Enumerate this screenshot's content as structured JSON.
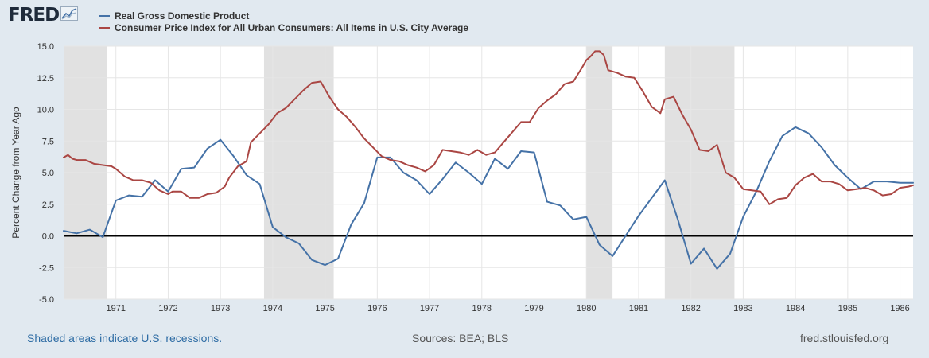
{
  "header": {
    "logo_text": "FRED",
    "logo_icon": "line-chart-icon"
  },
  "colors": {
    "gdp": "#4572a7",
    "cpi": "#aa4643",
    "recession": "#e1e1e1",
    "background": "#e1e9f0",
    "plot": "#ffffff"
  },
  "chart_data": {
    "type": "line",
    "title": "",
    "ylabel": "Percent Change from Year Ago",
    "xlabel": "",
    "ylim": [
      -5.0,
      15.0
    ],
    "xlim": [
      "1970-01-01",
      "1986-04-01"
    ],
    "y_ticks": [
      "15.0",
      "12.5",
      "10.0",
      "7.5",
      "5.0",
      "2.5",
      "0.0",
      "-2.5",
      "-5.0"
    ],
    "x_ticks": [
      "1971",
      "1972",
      "1973",
      "1974",
      "1975",
      "1976",
      "1977",
      "1978",
      "1979",
      "1980",
      "1981",
      "1982",
      "1983",
      "1984",
      "1985",
      "1986"
    ],
    "grid": true,
    "legend": "top-left",
    "recessions": [
      [
        "1970-01-01",
        "1970-11-01"
      ],
      [
        "1973-11-01",
        "1975-03-01"
      ],
      [
        "1980-01-01",
        "1980-07-01"
      ],
      [
        "1981-07-01",
        "1982-11-01"
      ]
    ],
    "series": [
      {
        "name": "Real Gross Domestic Product",
        "frequency": "quarterly",
        "x": [
          "1970-01-01",
          "1970-04-01",
          "1970-07-01",
          "1970-10-01",
          "1971-01-01",
          "1971-04-01",
          "1971-07-01",
          "1971-10-01",
          "1972-01-01",
          "1972-04-01",
          "1972-07-01",
          "1972-10-01",
          "1973-01-01",
          "1973-04-01",
          "1973-07-01",
          "1973-10-01",
          "1974-01-01",
          "1974-04-01",
          "1974-07-01",
          "1974-10-01",
          "1975-01-01",
          "1975-04-01",
          "1975-07-01",
          "1975-10-01",
          "1976-01-01",
          "1976-04-01",
          "1976-07-01",
          "1976-10-01",
          "1977-01-01",
          "1977-04-01",
          "1977-07-01",
          "1977-10-01",
          "1978-01-01",
          "1978-04-01",
          "1978-07-01",
          "1978-10-01",
          "1979-01-01",
          "1979-04-01",
          "1979-07-01",
          "1979-10-01",
          "1980-01-01",
          "1980-04-01",
          "1980-07-01",
          "1980-10-01",
          "1981-01-01",
          "1981-04-01",
          "1981-07-01",
          "1981-10-01",
          "1982-01-01",
          "1982-04-01",
          "1982-07-01",
          "1982-10-01",
          "1983-01-01",
          "1983-04-01",
          "1983-07-01",
          "1983-10-01",
          "1984-01-01",
          "1984-04-01",
          "1984-07-01",
          "1984-10-01",
          "1985-01-01",
          "1985-04-01",
          "1985-07-01",
          "1985-10-01",
          "1986-01-01",
          "1986-04-01"
        ],
        "values": [
          0.4,
          0.2,
          0.5,
          -0.1,
          2.8,
          3.2,
          3.1,
          4.4,
          3.5,
          5.3,
          5.4,
          6.9,
          7.6,
          6.3,
          4.8,
          4.1,
          0.7,
          -0.1,
          -0.6,
          -1.9,
          -2.3,
          -1.8,
          0.9,
          2.6,
          6.2,
          6.2,
          5.0,
          4.4,
          3.3,
          4.5,
          5.8,
          5.0,
          4.1,
          6.1,
          5.3,
          6.7,
          6.6,
          2.7,
          2.4,
          1.3,
          1.5,
          -0.7,
          -1.6,
          0.0,
          1.6,
          3.0,
          4.4,
          1.3,
          -2.2,
          -1.0,
          -2.6,
          -1.4,
          1.5,
          3.5,
          5.9,
          7.9,
          8.6,
          8.1,
          7.0,
          5.6,
          4.6,
          3.7,
          4.3,
          4.3,
          4.2,
          4.2
        ]
      },
      {
        "name": "Consumer Price Index for All Urban Consumers: All Items in U.S. City Average",
        "frequency": "monthly-approx",
        "x": [
          "1970-01-01",
          "1970-02-01",
          "1970-03-01",
          "1970-04-01",
          "1970-06-01",
          "1970-08-01",
          "1970-10-01",
          "1970-12-01",
          "1971-01-01",
          "1971-03-01",
          "1971-05-01",
          "1971-07-01",
          "1971-09-01",
          "1971-11-01",
          "1972-01-01",
          "1972-02-01",
          "1972-04-01",
          "1972-06-01",
          "1972-08-01",
          "1972-10-01",
          "1972-12-01",
          "1973-02-01",
          "1973-03-01",
          "1973-05-01",
          "1973-07-01",
          "1973-08-01",
          "1973-10-01",
          "1973-12-01",
          "1974-02-01",
          "1974-04-01",
          "1974-06-01",
          "1974-08-01",
          "1974-10-01",
          "1974-12-01",
          "1975-02-01",
          "1975-04-01",
          "1975-06-01",
          "1975-08-01",
          "1975-10-01",
          "1975-12-01",
          "1976-02-01",
          "1976-04-01",
          "1976-06-01",
          "1976-08-01",
          "1976-10-01",
          "1976-12-01",
          "1977-02-01",
          "1977-04-01",
          "1977-06-01",
          "1977-08-01",
          "1977-10-01",
          "1977-12-01",
          "1978-02-01",
          "1978-04-01",
          "1978-06-01",
          "1978-08-01",
          "1978-10-01",
          "1978-12-01",
          "1979-02-01",
          "1979-04-01",
          "1979-06-01",
          "1979-08-01",
          "1979-10-01",
          "1979-12-01",
          "1980-01-01",
          "1980-02-01",
          "1980-03-01",
          "1980-04-01",
          "1980-05-01",
          "1980-06-01",
          "1980-08-01",
          "1980-10-01",
          "1980-12-01",
          "1981-02-01",
          "1981-04-01",
          "1981-06-01",
          "1981-07-01",
          "1981-09-01",
          "1981-11-01",
          "1982-01-01",
          "1982-03-01",
          "1982-05-01",
          "1982-07-01",
          "1982-09-01",
          "1982-11-01",
          "1983-01-01",
          "1983-03-01",
          "1983-05-01",
          "1983-07-01",
          "1983-09-01",
          "1983-11-01",
          "1984-01-01",
          "1984-03-01",
          "1984-05-01",
          "1984-07-01",
          "1984-09-01",
          "1984-11-01",
          "1985-01-01",
          "1985-03-01",
          "1985-05-01",
          "1985-07-01",
          "1985-09-01",
          "1985-11-01",
          "1986-01-01",
          "1986-03-01",
          "1986-04-01"
        ],
        "values": [
          6.2,
          6.4,
          6.1,
          6.0,
          6.0,
          5.7,
          5.6,
          5.5,
          5.3,
          4.7,
          4.4,
          4.4,
          4.2,
          3.6,
          3.3,
          3.5,
          3.5,
          3.0,
          3.0,
          3.3,
          3.4,
          3.9,
          4.6,
          5.5,
          5.9,
          7.4,
          8.1,
          8.8,
          9.7,
          10.1,
          10.8,
          11.5,
          12.1,
          12.2,
          11.0,
          10.0,
          9.4,
          8.6,
          7.7,
          7.0,
          6.3,
          6.0,
          5.9,
          5.6,
          5.4,
          5.1,
          5.6,
          6.8,
          6.7,
          6.6,
          6.4,
          6.8,
          6.4,
          6.6,
          7.4,
          8.2,
          9.0,
          9.0,
          10.1,
          10.7,
          11.2,
          12.0,
          12.2,
          13.3,
          13.9,
          14.2,
          14.6,
          14.6,
          14.3,
          13.1,
          12.9,
          12.6,
          12.5,
          11.4,
          10.2,
          9.7,
          10.8,
          11.0,
          9.6,
          8.4,
          6.8,
          6.7,
          7.2,
          5.0,
          4.6,
          3.7,
          3.6,
          3.5,
          2.5,
          2.9,
          3.0,
          4.0,
          4.6,
          4.9,
          4.3,
          4.3,
          4.1,
          3.6,
          3.7,
          3.8,
          3.6,
          3.2,
          3.3,
          3.8,
          3.9,
          4.0
        ]
      }
    ]
  },
  "footer": {
    "recession_note": "Shaded areas indicate U.S. recessions.",
    "sources": "Sources: BEA; BLS",
    "site": "fred.stlouisfed.org"
  }
}
